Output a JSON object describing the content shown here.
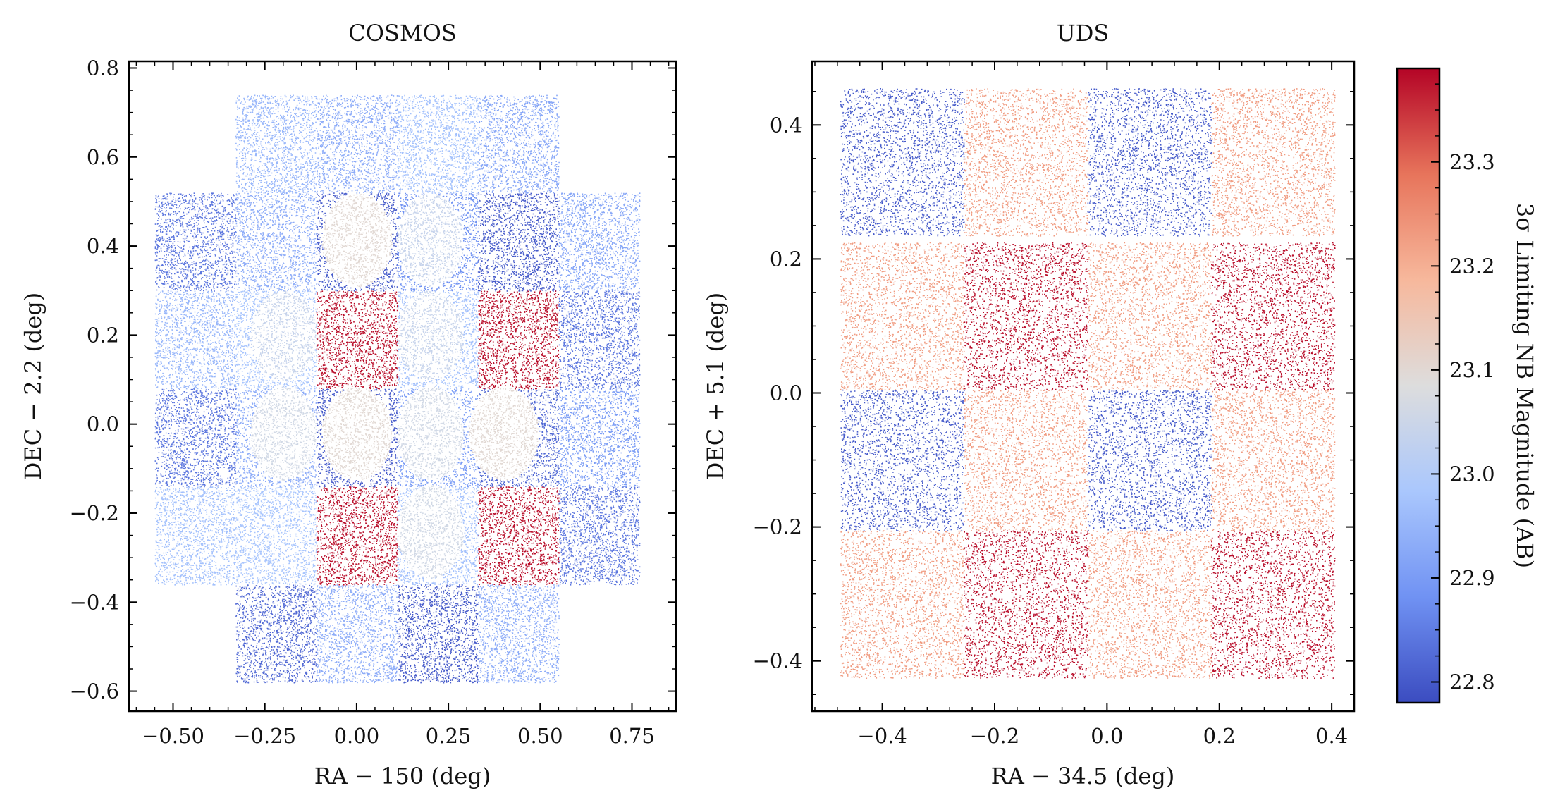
{
  "chart_data": [
    {
      "type": "scatter",
      "title": "COSMOS",
      "xlabel": "RA − 150 (deg)",
      "ylabel": "DEC − 2.2 (deg)",
      "xlim": [
        -0.62,
        0.87
      ],
      "ylim": [
        -0.645,
        0.815
      ],
      "xticks": [
        -0.5,
        -0.25,
        0.0,
        0.25,
        0.5,
        0.75
      ],
      "xtick_labels": [
        "−0.50",
        "−0.25",
        "0.00",
        "0.25",
        "0.50",
        "0.75"
      ],
      "yticks": [
        -0.6,
        -0.4,
        -0.2,
        0.0,
        0.2,
        0.4,
        0.6,
        0.8
      ],
      "ytick_labels": [
        "−0.6",
        "−0.4",
        "−0.2",
        "0.0",
        "0.2",
        "0.4",
        "0.6",
        "0.8"
      ],
      "regions": [
        {
          "shape": "rect",
          "x": [
            -0.33,
            -0.11
          ],
          "y": [
            0.52,
            0.74
          ],
          "mag": 22.95
        },
        {
          "shape": "rect",
          "x": [
            -0.11,
            0.11
          ],
          "y": [
            0.52,
            0.74
          ],
          "mag": 22.93
        },
        {
          "shape": "rect",
          "x": [
            0.11,
            0.33
          ],
          "y": [
            0.52,
            0.74
          ],
          "mag": 22.97
        },
        {
          "shape": "rect",
          "x": [
            0.33,
            0.55
          ],
          "y": [
            0.52,
            0.74
          ],
          "mag": 22.92
        },
        {
          "shape": "rect",
          "x": [
            -0.55,
            -0.33
          ],
          "y": [
            0.3,
            0.52
          ],
          "mag": 22.84
        },
        {
          "shape": "rect",
          "x": [
            -0.33,
            -0.11
          ],
          "y": [
            0.3,
            0.52
          ],
          "mag": 22.93
        },
        {
          "shape": "rect",
          "x": [
            -0.11,
            0.11
          ],
          "y": [
            0.3,
            0.52
          ],
          "mag": 22.8
        },
        {
          "shape": "rect",
          "x": [
            0.11,
            0.33
          ],
          "y": [
            0.3,
            0.52
          ],
          "mag": 22.88
        },
        {
          "shape": "rect",
          "x": [
            0.33,
            0.55
          ],
          "y": [
            0.3,
            0.52
          ],
          "mag": 22.8
        },
        {
          "shape": "rect",
          "x": [
            0.55,
            0.77
          ],
          "y": [
            0.3,
            0.52
          ],
          "mag": 22.92
        },
        {
          "shape": "rect",
          "x": [
            -0.55,
            -0.33
          ],
          "y": [
            0.08,
            0.3
          ],
          "mag": 22.95
        },
        {
          "shape": "rect",
          "x": [
            -0.33,
            -0.11
          ],
          "y": [
            0.08,
            0.3
          ],
          "mag": 22.98
        },
        {
          "shape": "rect",
          "x": [
            -0.11,
            0.11
          ],
          "y": [
            0.08,
            0.3
          ],
          "mag": 23.38
        },
        {
          "shape": "rect",
          "x": [
            0.11,
            0.33
          ],
          "y": [
            0.08,
            0.3
          ],
          "mag": 22.97
        },
        {
          "shape": "rect",
          "x": [
            0.33,
            0.55
          ],
          "y": [
            0.08,
            0.3
          ],
          "mag": 23.38
        },
        {
          "shape": "rect",
          "x": [
            0.55,
            0.77
          ],
          "y": [
            0.08,
            0.3
          ],
          "mag": 22.84
        },
        {
          "shape": "rect",
          "x": [
            -0.55,
            -0.33
          ],
          "y": [
            -0.14,
            0.08
          ],
          "mag": 22.84
        },
        {
          "shape": "rect",
          "x": [
            -0.33,
            -0.11
          ],
          "y": [
            -0.14,
            0.08
          ],
          "mag": 22.93
        },
        {
          "shape": "rect",
          "x": [
            -0.11,
            0.11
          ],
          "y": [
            -0.14,
            0.08
          ],
          "mag": 22.8
        },
        {
          "shape": "rect",
          "x": [
            0.11,
            0.33
          ],
          "y": [
            -0.14,
            0.08
          ],
          "mag": 22.9
        },
        {
          "shape": "rect",
          "x": [
            0.33,
            0.55
          ],
          "y": [
            -0.14,
            0.08
          ],
          "mag": 22.82
        },
        {
          "shape": "rect",
          "x": [
            0.55,
            0.77
          ],
          "y": [
            -0.14,
            0.08
          ],
          "mag": 22.9
        },
        {
          "shape": "rect",
          "x": [
            -0.55,
            -0.33
          ],
          "y": [
            -0.36,
            -0.14
          ],
          "mag": 22.97
        },
        {
          "shape": "rect",
          "x": [
            -0.33,
            -0.11
          ],
          "y": [
            -0.36,
            -0.14
          ],
          "mag": 22.98
        },
        {
          "shape": "rect",
          "x": [
            -0.11,
            0.11
          ],
          "y": [
            -0.36,
            -0.14
          ],
          "mag": 23.38
        },
        {
          "shape": "rect",
          "x": [
            0.11,
            0.33
          ],
          "y": [
            -0.36,
            -0.14
          ],
          "mag": 22.97
        },
        {
          "shape": "rect",
          "x": [
            0.33,
            0.55
          ],
          "y": [
            -0.36,
            -0.14
          ],
          "mag": 23.38
        },
        {
          "shape": "rect",
          "x": [
            0.55,
            0.77
          ],
          "y": [
            -0.36,
            -0.14
          ],
          "mag": 22.84
        },
        {
          "shape": "rect",
          "x": [
            -0.33,
            -0.11
          ],
          "y": [
            -0.58,
            -0.36
          ],
          "mag": 22.82
        },
        {
          "shape": "rect",
          "x": [
            -0.11,
            0.11
          ],
          "y": [
            -0.58,
            -0.36
          ],
          "mag": 22.93
        },
        {
          "shape": "rect",
          "x": [
            0.11,
            0.33
          ],
          "y": [
            -0.58,
            -0.36
          ],
          "mag": 22.8
        },
        {
          "shape": "rect",
          "x": [
            0.33,
            0.55
          ],
          "y": [
            -0.58,
            -0.36
          ],
          "mag": 22.93
        },
        {
          "shape": "ellipse",
          "cx": 0.0,
          "cy": 0.415,
          "rx": 0.095,
          "ry": 0.105,
          "mag": 23.1
        },
        {
          "shape": "ellipse",
          "cx": 0.2,
          "cy": 0.415,
          "rx": 0.09,
          "ry": 0.105,
          "mag": 23.04
        },
        {
          "shape": "ellipse",
          "cx": -0.2,
          "cy": 0.2,
          "rx": 0.09,
          "ry": 0.1,
          "mag": 23.04
        },
        {
          "shape": "ellipse",
          "cx": 0.2,
          "cy": 0.2,
          "rx": 0.09,
          "ry": 0.1,
          "mag": 23.04
        },
        {
          "shape": "ellipse",
          "cx": -0.2,
          "cy": -0.02,
          "rx": 0.09,
          "ry": 0.105,
          "mag": 23.06
        },
        {
          "shape": "ellipse",
          "cx": 0.0,
          "cy": -0.02,
          "rx": 0.095,
          "ry": 0.105,
          "mag": 23.1
        },
        {
          "shape": "ellipse",
          "cx": 0.2,
          "cy": -0.02,
          "rx": 0.09,
          "ry": 0.105,
          "mag": 23.06
        },
        {
          "shape": "ellipse",
          "cx": 0.4,
          "cy": -0.02,
          "rx": 0.095,
          "ry": 0.105,
          "mag": 23.1
        },
        {
          "shape": "ellipse",
          "cx": 0.2,
          "cy": -0.24,
          "rx": 0.09,
          "ry": 0.105,
          "mag": 23.06
        }
      ]
    },
    {
      "type": "scatter",
      "title": "UDS",
      "xlabel": "RA − 34.5 (deg)",
      "ylabel": "DEC + 5.1 (deg)",
      "xlim": [
        -0.525,
        0.44
      ],
      "ylim": [
        -0.475,
        0.495
      ],
      "xticks": [
        -0.4,
        -0.2,
        0.0,
        0.2,
        0.4
      ],
      "xtick_labels": [
        "−0.4",
        "−0.2",
        "0.0",
        "0.2",
        "0.4"
      ],
      "yticks": [
        -0.4,
        -0.2,
        0.0,
        0.2,
        0.4
      ],
      "ytick_labels": [
        "−0.4",
        "−0.2",
        "0.0",
        "0.2",
        "0.4"
      ],
      "regions": [
        {
          "shape": "rect",
          "x": [
            -0.475,
            -0.255
          ],
          "y": [
            0.235,
            0.455
          ],
          "mag": 22.8
        },
        {
          "shape": "rect",
          "x": [
            -0.255,
            -0.035
          ],
          "y": [
            0.235,
            0.455
          ],
          "mag": 23.23
        },
        {
          "shape": "rect",
          "x": [
            -0.035,
            0.185
          ],
          "y": [
            0.235,
            0.455
          ],
          "mag": 22.8
        },
        {
          "shape": "rect",
          "x": [
            0.185,
            0.405
          ],
          "y": [
            0.235,
            0.455
          ],
          "mag": 23.23
        },
        {
          "shape": "rect",
          "x": [
            -0.475,
            -0.255
          ],
          "y": [
            0.005,
            0.225
          ],
          "mag": 23.23
        },
        {
          "shape": "rect",
          "x": [
            -0.255,
            -0.035
          ],
          "y": [
            0.005,
            0.225
          ],
          "mag": 23.38
        },
        {
          "shape": "rect",
          "x": [
            -0.035,
            0.185
          ],
          "y": [
            0.005,
            0.225
          ],
          "mag": 23.23
        },
        {
          "shape": "rect",
          "x": [
            0.185,
            0.405
          ],
          "y": [
            0.005,
            0.225
          ],
          "mag": 23.38
        },
        {
          "shape": "rect",
          "x": [
            -0.475,
            -0.255
          ],
          "y": [
            -0.205,
            0.005
          ],
          "mag": 22.8
        },
        {
          "shape": "rect",
          "x": [
            -0.255,
            -0.035
          ],
          "y": [
            -0.205,
            0.005
          ],
          "mag": 23.23
        },
        {
          "shape": "rect",
          "x": [
            -0.035,
            0.185
          ],
          "y": [
            -0.205,
            0.005
          ],
          "mag": 22.8
        },
        {
          "shape": "rect",
          "x": [
            0.185,
            0.405
          ],
          "y": [
            -0.205,
            0.005
          ],
          "mag": 23.23
        },
        {
          "shape": "rect",
          "x": [
            -0.475,
            -0.255
          ],
          "y": [
            -0.425,
            -0.205
          ],
          "mag": 23.23
        },
        {
          "shape": "rect",
          "x": [
            -0.255,
            -0.035
          ],
          "y": [
            -0.425,
            -0.205
          ],
          "mag": 23.38
        },
        {
          "shape": "rect",
          "x": [
            -0.035,
            0.185
          ],
          "y": [
            -0.425,
            -0.205
          ],
          "mag": 23.23
        },
        {
          "shape": "rect",
          "x": [
            0.185,
            0.405
          ],
          "y": [
            -0.425,
            -0.205
          ],
          "mag": 23.38
        }
      ]
    }
  ],
  "colorbar": {
    "label": "3σ Limiting NB Magnitude (AB)",
    "range": [
      22.78,
      23.39
    ],
    "ticks": [
      22.8,
      22.9,
      23.0,
      23.1,
      23.2,
      23.3
    ],
    "tick_labels": [
      "22.8",
      "22.9",
      "23.0",
      "23.1",
      "23.2",
      "23.3"
    ],
    "colormap": "coolwarm",
    "stops": [
      "#3b4cc0",
      "#7092f3",
      "#aac7fd",
      "#dddddd",
      "#f7b89c",
      "#e7745b",
      "#b40426"
    ]
  }
}
